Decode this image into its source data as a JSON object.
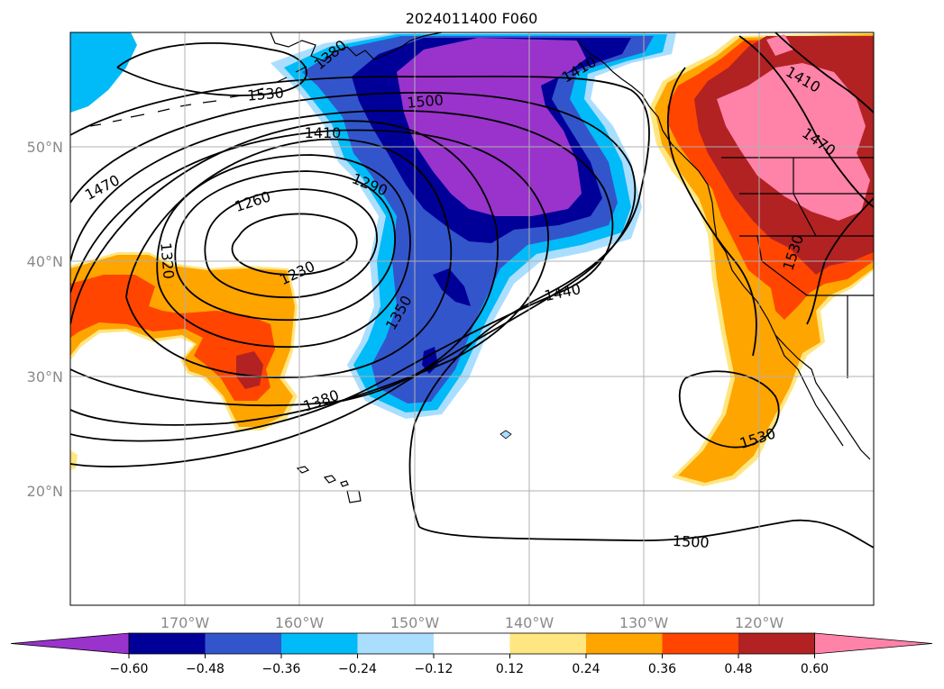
{
  "title": "2024011400 F060",
  "lon_labels": [
    "170°W",
    "160°W",
    "150°W",
    "140°W",
    "130°W",
    "120°W"
  ],
  "lat_labels": [
    "50°N",
    "40°N",
    "30°N",
    "20°N"
  ],
  "colorbar": {
    "ticks": [
      "−0.60",
      "−0.48",
      "−0.36",
      "−0.24",
      "−0.12",
      "0.12",
      "0.24",
      "0.36",
      "0.48",
      "0.60"
    ],
    "colors": [
      "#9933cc",
      "#000099",
      "#3355cc",
      "#00bbf8",
      "#aadeff",
      "#ffffff",
      "#ffe680",
      "#ffa500",
      "#ff4500",
      "#b22222",
      "#ff82a9"
    ]
  },
  "contour_labels": [
    "1530",
    "1500",
    "1410",
    "1470",
    "1260",
    "1290",
    "1320",
    "1230",
    "1350",
    "1380",
    "1440",
    "1410",
    "1470",
    "1530",
    "1530",
    "1500",
    "1410",
    "1380"
  ],
  "chart_data": {
    "type": "heatmap",
    "title": "2024011400 F060",
    "lon_ticks": [
      "170°W",
      "160°W",
      "150°W",
      "140°W",
      "130°W",
      "120°W"
    ],
    "lat_ticks": [
      "50°N",
      "40°N",
      "30°N",
      "20°N"
    ],
    "color_levels": [
      -0.6,
      -0.48,
      -0.36,
      -0.24,
      -0.12,
      0.12,
      0.24,
      0.36,
      0.48,
      0.6
    ],
    "contour_levels": [
      1230,
      1260,
      1290,
      1320,
      1350,
      1380,
      1410,
      1440,
      1470,
      1500,
      1530
    ]
  }
}
